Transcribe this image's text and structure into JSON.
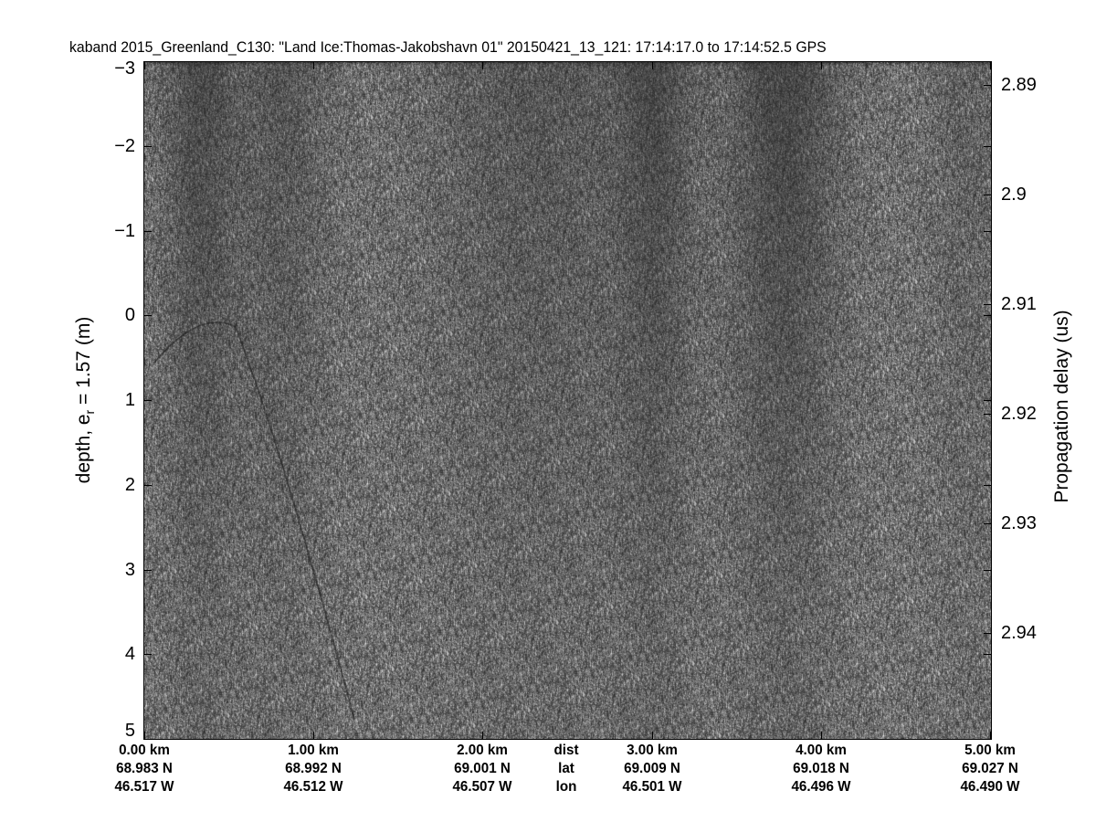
{
  "chart_data": {
    "type": "heatmap",
    "title": "kaband 2015_Greenland_C130: \"Land Ice:Thomas-Jakobshavn 01\"  20150421_13_121: 17:14:17.0 to 17:14:52.5 GPS",
    "colormap": "gray",
    "ylabel": {
      "main": "depth, e",
      "sub": "r",
      "rest": " = 1.57 (m)"
    },
    "y2label": "Propagation delay (us)",
    "ylim": [
      -3,
      5
    ],
    "y_ticks": [
      "-3",
      "-2",
      "-1",
      "0",
      "1",
      "2",
      "3",
      "4",
      "5"
    ],
    "y2_ticks": [
      "2.89",
      "2.9",
      "2.91",
      "2.92",
      "2.93",
      "2.94"
    ],
    "xlim_km": [
      0,
      5
    ],
    "x_ticks": [
      {
        "dist": "0.00 km",
        "lat": "68.983 N",
        "lon": "46.517 W",
        "km": 0
      },
      {
        "dist": "1.00 km",
        "lat": "68.992 N",
        "lon": "46.512 W",
        "km": 1
      },
      {
        "dist": "2.00 km",
        "lat": "69.001 N",
        "lon": "46.507 W",
        "km": 2
      },
      {
        "dist": "3.00 km",
        "lat": "69.009 N",
        "lon": "46.501 W",
        "km": 3
      },
      {
        "dist": "4.00 km",
        "lat": "69.018 N",
        "lon": "46.496 W",
        "km": 4
      },
      {
        "dist": "5.00 km",
        "lat": "69.027 N",
        "lon": "46.490 W",
        "km": 5
      }
    ],
    "row_labels": {
      "dist": "dist",
      "lat": "lat",
      "lon": "lon"
    }
  }
}
